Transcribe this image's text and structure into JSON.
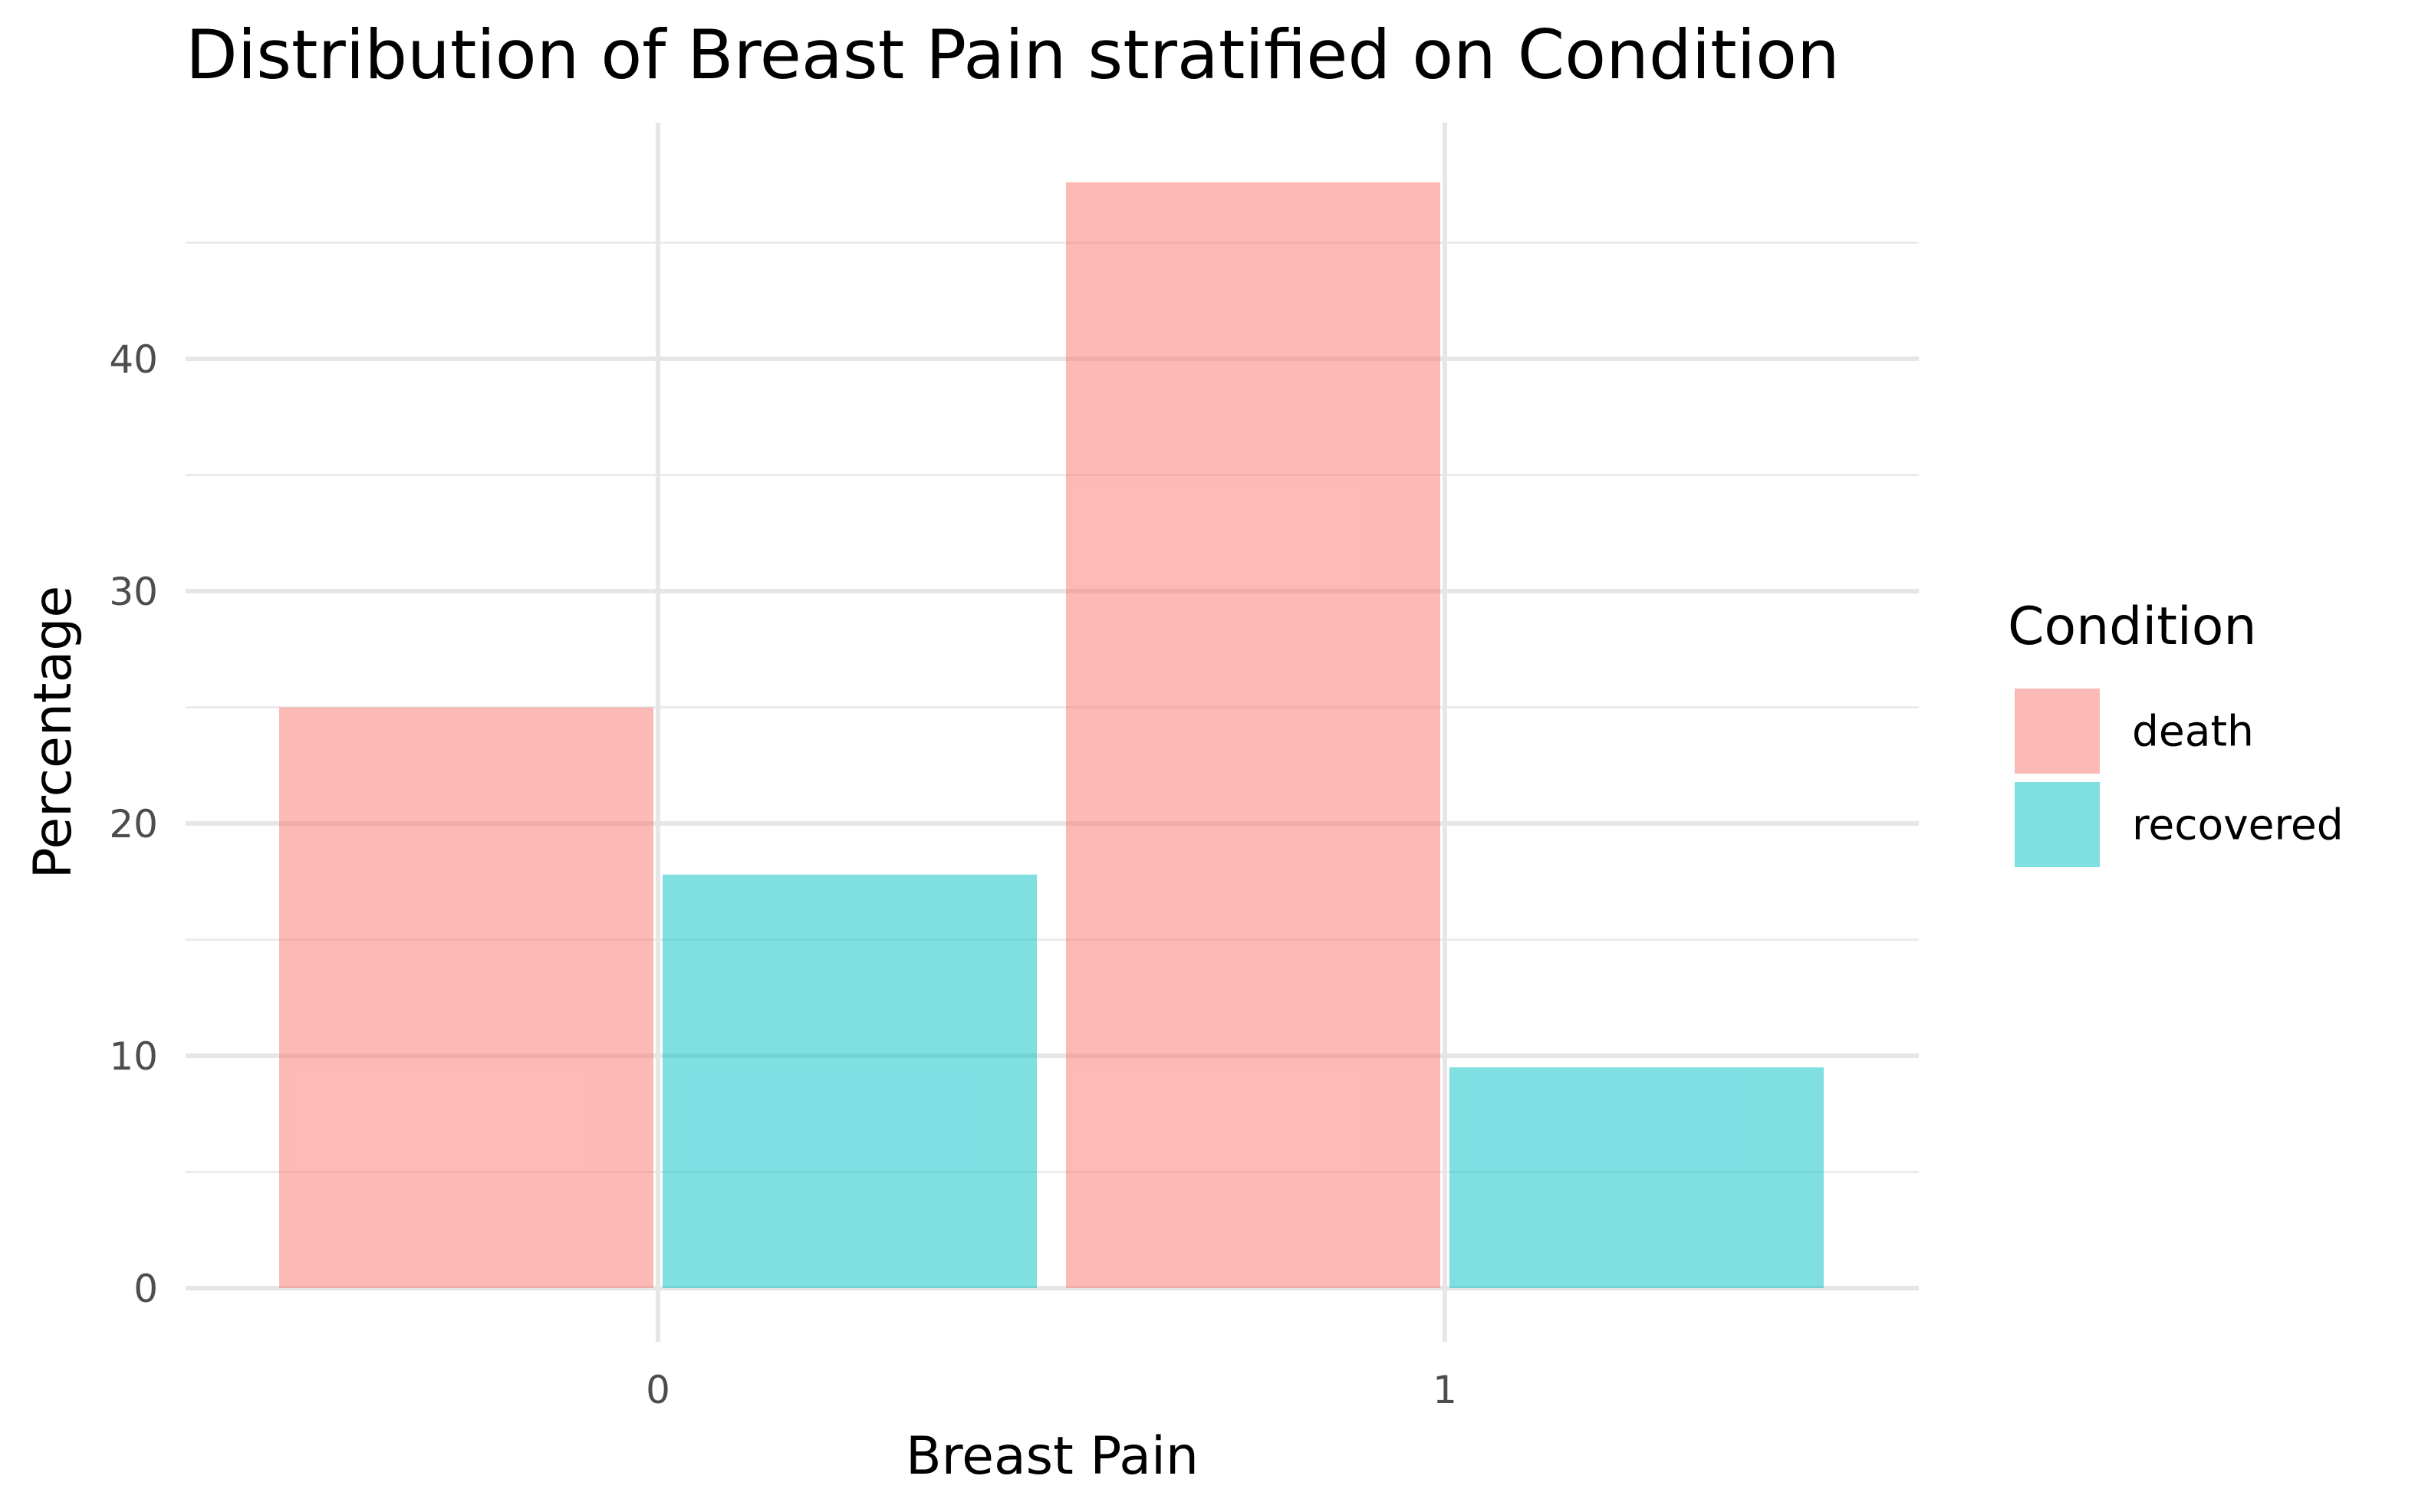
{
  "chart_data": {
    "type": "bar",
    "title": "Distribution of Breast Pain stratified on Condition",
    "xlabel": "Breast Pain",
    "ylabel": "Percentage",
    "categories": [
      "0",
      "1"
    ],
    "series": [
      {
        "name": "death",
        "values": [
          25.0,
          47.6
        ],
        "color": "#F8766D"
      },
      {
        "name": "recovered",
        "values": [
          17.8,
          9.5
        ],
        "color": "#00BFC4"
      }
    ],
    "ylim": [
      -2,
      50
    ],
    "yticks": [
      "0",
      "10",
      "20",
      "30",
      "40"
    ],
    "bar_opacity": 0.5,
    "grid": true,
    "legend": {
      "title": "Condition",
      "position": "right"
    }
  }
}
